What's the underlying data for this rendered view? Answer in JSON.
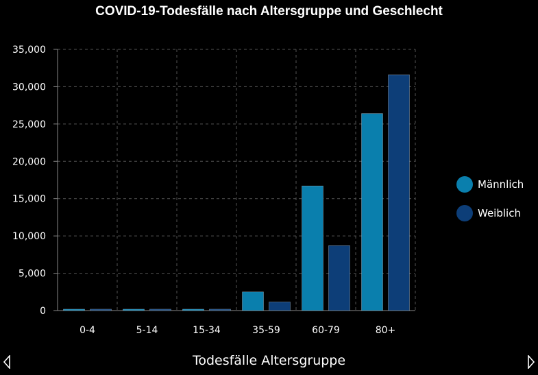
{
  "chart_data": {
    "type": "bar",
    "title": "COVID-19-Todesfälle nach Altersgruppe und Geschlecht",
    "xlabel": "",
    "ylabel": "",
    "categories": [
      "0-4",
      "5-14",
      "15-34",
      "35-59",
      "60-79",
      "80+"
    ],
    "series": [
      {
        "name": "Männlich",
        "color": "#0a7fad",
        "values": [
          30,
          20,
          170,
          2500,
          16700,
          26400
        ]
      },
      {
        "name": "Weiblich",
        "color": "#0d3e78",
        "values": [
          20,
          15,
          90,
          1150,
          8700,
          31600
        ]
      }
    ],
    "ylim": [
      0,
      35000
    ],
    "yticks": [
      0,
      5000,
      10000,
      15000,
      20000,
      25000,
      30000,
      35000
    ],
    "ytick_labels": [
      "0",
      "5,000",
      "10,000",
      "15,000",
      "20,000",
      "25,000",
      "30,000",
      "35,000"
    ],
    "grid": true,
    "legend_position": "right"
  },
  "footer": {
    "caption": "Todesfälle Altersgruppe",
    "prev_icon": "chevron-left-icon",
    "next_icon": "chevron-right-icon"
  }
}
